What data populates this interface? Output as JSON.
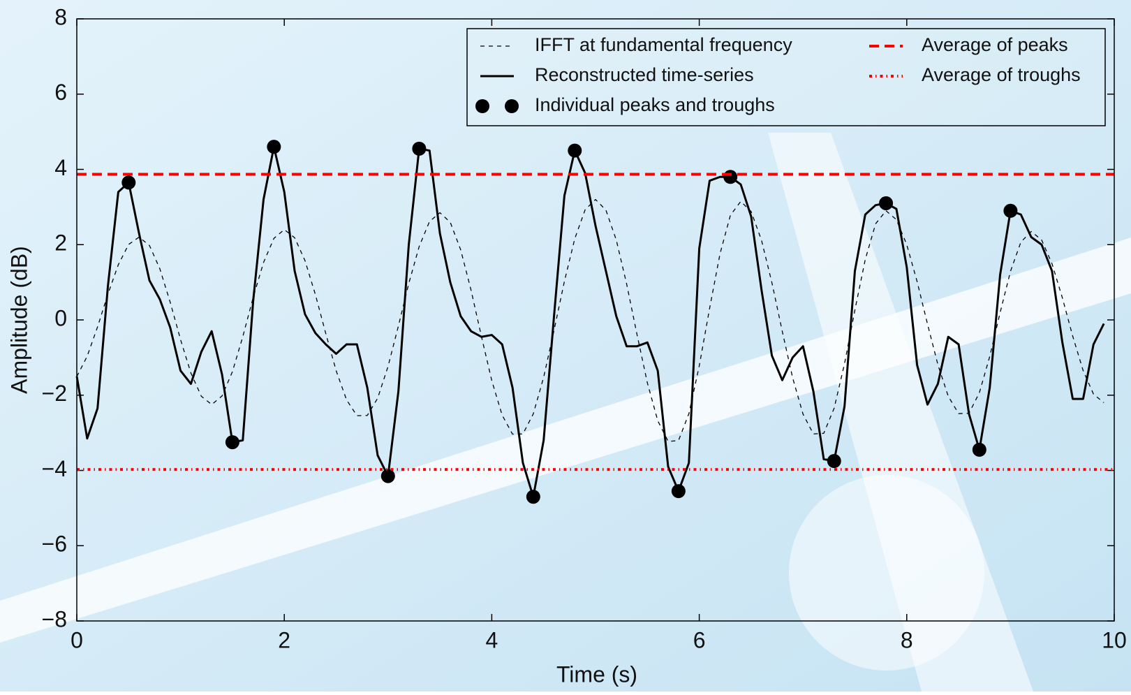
{
  "chart_data": {
    "type": "line",
    "xlabel": "Time (s)",
    "ylabel": "Amplitude (dB)",
    "xlim": [
      0,
      10
    ],
    "ylim": [
      -8,
      8
    ],
    "xticks": [
      0,
      2,
      4,
      6,
      8,
      10
    ],
    "yticks": [
      {
        "value": -8,
        "label": "−8"
      },
      {
        "value": -6,
        "label": "−6"
      },
      {
        "value": -4,
        "label": "−4"
      },
      {
        "value": -2,
        "label": "−2"
      },
      0,
      2,
      4,
      6,
      8
    ],
    "grid": false,
    "legend": "upper right",
    "x": [
      0,
      0.1,
      0.2,
      0.3,
      0.4,
      0.5,
      0.6,
      0.7,
      0.8,
      0.9,
      1,
      1.1,
      1.2,
      1.3,
      1.4,
      1.5,
      1.6,
      1.7,
      1.8,
      1.9,
      2,
      2.1,
      2.2,
      2.3,
      2.4,
      2.5,
      2.6,
      2.7,
      2.8,
      2.9,
      3,
      3.1,
      3.2,
      3.3,
      3.4,
      3.5,
      3.6,
      3.7,
      3.8,
      3.9,
      4,
      4.1,
      4.2,
      4.3,
      4.4,
      4.5,
      4.6,
      4.7,
      4.8,
      4.9,
      5,
      5.1,
      5.2,
      5.3,
      5.4,
      5.5,
      5.6,
      5.7,
      5.8,
      5.9,
      6,
      6.1,
      6.2,
      6.3,
      6.4,
      6.5,
      6.6,
      6.7,
      6.8,
      6.9,
      7,
      7.1,
      7.2,
      7.3,
      7.4,
      7.5,
      7.6,
      7.7,
      7.8,
      7.9,
      8,
      8.1,
      8.2,
      8.3,
      8.4,
      8.5,
      8.6,
      8.7,
      8.8,
      8.9,
      9,
      9.1,
      9.2,
      9.3,
      9.4,
      9.5,
      9.6,
      9.7,
      9.8,
      9.9
    ],
    "series": [
      {
        "name": "IFFT at fundamental frequency",
        "style": "dashed",
        "color": "#000000",
        "values": [
          -1.507,
          -0.966,
          -0.186,
          0.686,
          1.466,
          2.007,
          2.2,
          1.98,
          1.363,
          0.473,
          -0.523,
          -1.413,
          -2.028,
          -2.25,
          -2.02,
          -1.376,
          -0.446,
          0.596,
          1.526,
          2.168,
          2.4,
          2.184,
          1.573,
          0.672,
          -0.362,
          -1.35,
          -2.123,
          -2.545,
          -2.54,
          -2.08,
          -1.238,
          -0.16,
          0.967,
          1.949,
          2.615,
          2.85,
          2.593,
          1.866,
          0.794,
          -0.436,
          -1.613,
          -2.532,
          -3.035,
          -3.031,
          -2.498,
          -1.525,
          -0.279,
          1.023,
          2.158,
          2.928,
          3.2,
          2.919,
          2.125,
          0.954,
          -0.39,
          -1.675,
          -2.679,
          -3.229,
          -3.206,
          -2.491,
          -1.22,
          0.312,
          1.757,
          2.78,
          3.15,
          2.88,
          2.116,
          0.991,
          -0.302,
          -1.538,
          -2.503,
          -3.031,
          -3.013,
          -2.347,
          -1.165,
          0.26,
          1.604,
          2.556,
          2.9,
          2.665,
          1.999,
          1.017,
          -0.11,
          -1.188,
          -2.03,
          -2.49,
          -2.479,
          -1.935,
          -0.97,
          0.194,
          1.292,
          2.069,
          2.35,
          2.125,
          1.495,
          0.585,
          -0.435,
          -1.345,
          -1.9725,
          -2.2
        ]
      },
      {
        "name": "Reconstructed time-series",
        "style": "solid",
        "color": "#000000",
        "values": [
          -1.5,
          -3.15,
          -2.35,
          0.9,
          3.4,
          3.65,
          2.3,
          1.05,
          0.55,
          -0.2,
          -1.35,
          -1.7,
          -0.85,
          -0.3,
          -1.45,
          -3.25,
          -3.2,
          0.5,
          3.2,
          4.6,
          3.4,
          1.3,
          0.15,
          -0.35,
          -0.65,
          -0.9,
          -0.65,
          -0.65,
          -1.8,
          -3.6,
          -4.15,
          -1.9,
          2.0,
          4.55,
          4.5,
          2.3,
          1.0,
          0.1,
          -0.3,
          -0.45,
          -0.4,
          -0.65,
          -1.8,
          -3.8,
          -4.7,
          -3.2,
          0.1,
          3.3,
          4.5,
          3.9,
          2.5,
          1.3,
          0.1,
          -0.7,
          -0.7,
          -0.6,
          -1.35,
          -3.9,
          -4.55,
          -3.8,
          1.9,
          3.7,
          3.8,
          3.8,
          3.6,
          2.75,
          0.8,
          -0.95,
          -1.6,
          -1.0,
          -0.7,
          -1.9,
          -3.7,
          -3.75,
          -2.3,
          1.3,
          2.8,
          3.05,
          3.1,
          2.95,
          1.4,
          -1.2,
          -2.25,
          -1.7,
          -0.45,
          -0.65,
          -2.5,
          -3.45,
          -1.8,
          1.2,
          2.9,
          2.8,
          2.2,
          2.0,
          1.3,
          -0.6,
          -2.1,
          -2.1,
          -0.65,
          -0.1
        ]
      },
      {
        "name": "Individual peaks and troughs",
        "style": "markers",
        "color": "#000000",
        "x": [
          0.5,
          1.5,
          1.9,
          3.0,
          3.3,
          4.4,
          4.8,
          5.8,
          6.3,
          7.3,
          7.8,
          8.7,
          9.0
        ],
        "values": [
          3.65,
          -3.25,
          4.6,
          -4.15,
          4.55,
          -4.7,
          4.5,
          -4.55,
          3.8,
          -3.75,
          3.1,
          -3.45,
          2.9
        ]
      },
      {
        "name": "Average of peaks",
        "style": "hline-dashed",
        "color": "#ff0000",
        "value": 3.87
      },
      {
        "name": "Average of troughs",
        "style": "hline-dashdot",
        "color": "#ff0000",
        "value": -3.975
      }
    ]
  }
}
